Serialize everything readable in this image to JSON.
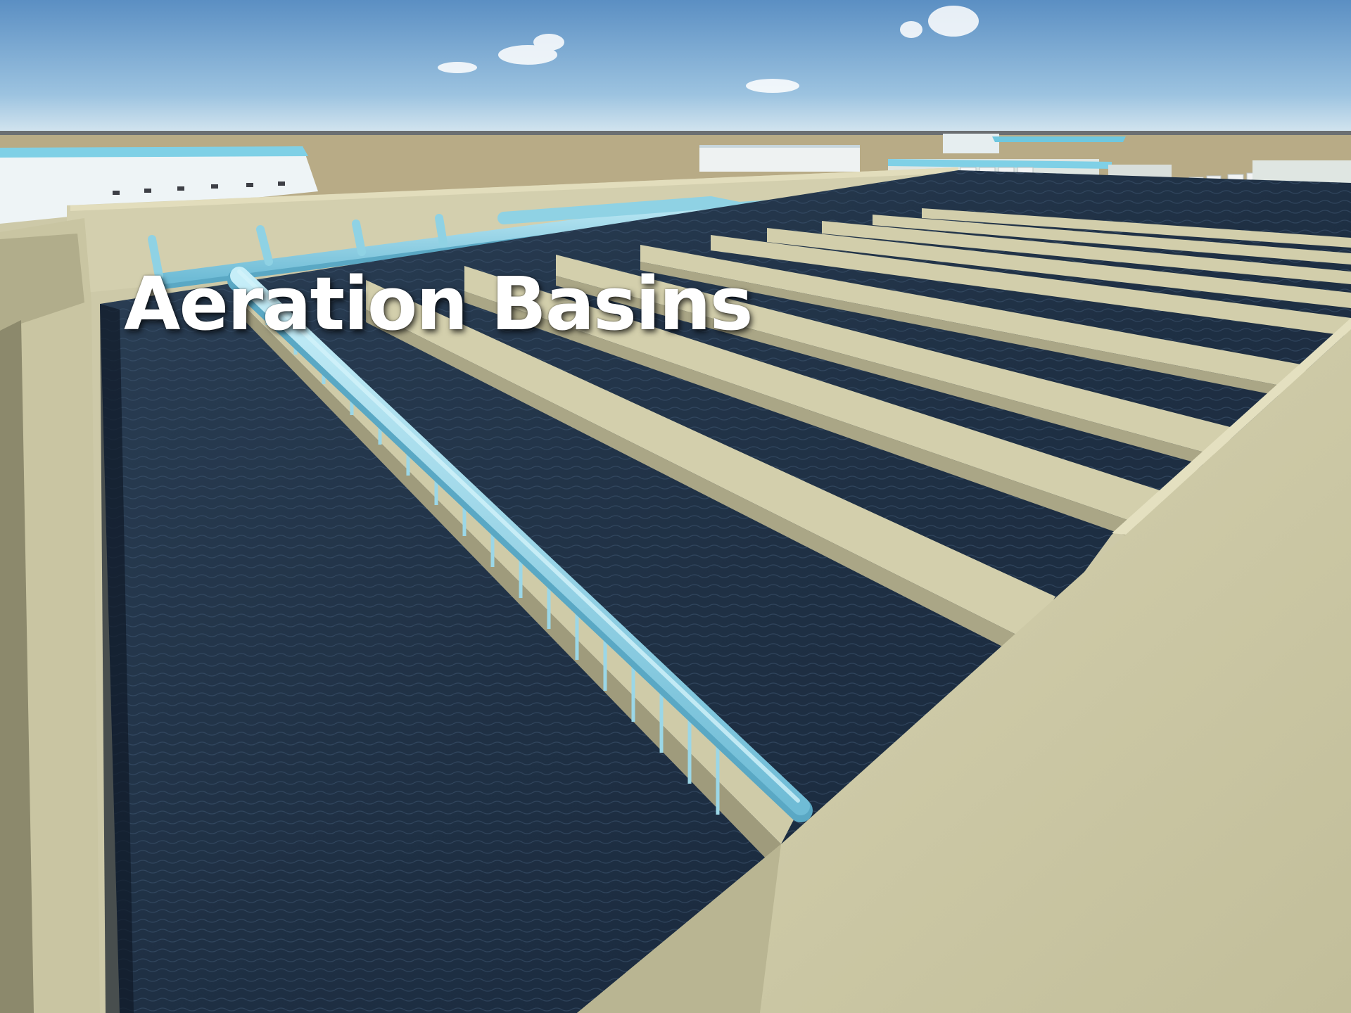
{
  "caption": {
    "title": "Aeration Basins"
  },
  "scene": {
    "subject": "aeration-basins-render",
    "colors": {
      "sky_top": "#5b8fc3",
      "sky_horizon": "#cfe2ef",
      "ground": "#b8ab86",
      "concrete": "#ccc8a4",
      "concrete_shadow": "#a9a585",
      "water": "#23344a",
      "pipe": "#8fd2e4"
    }
  }
}
